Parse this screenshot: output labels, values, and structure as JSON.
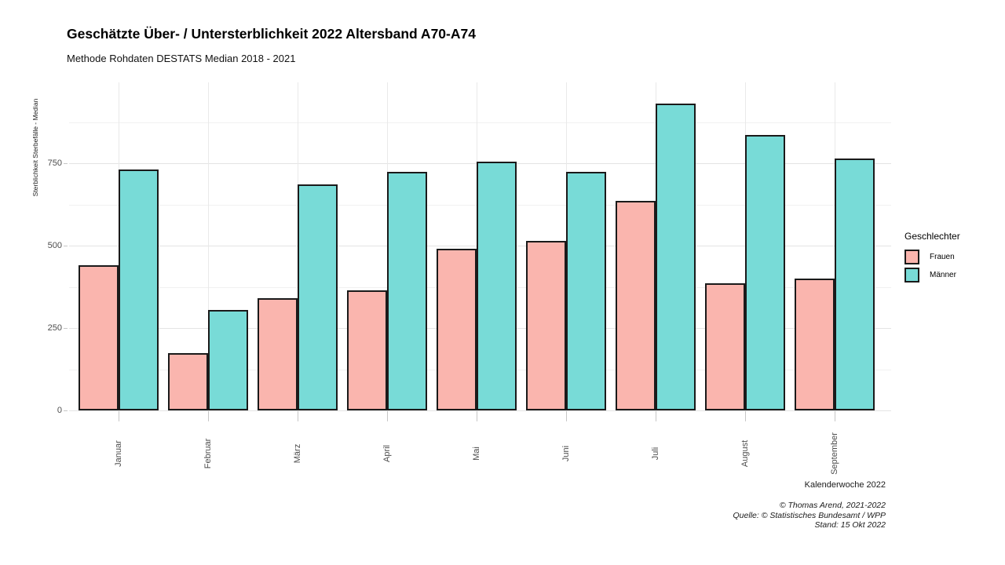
{
  "title": "Geschätzte Über- / Untersterblichkeit 2022 Altersband A70-A74",
  "subtitle": "Methode Rohdaten DESTATS Median 2018 - 2021",
  "chart_data": {
    "type": "bar",
    "title": "Geschätzte Über- / Untersterblichkeit 2022 Altersband A70-A74",
    "subtitle": "Methode Rohdaten DESTATS Median 2018 - 2021",
    "categories": [
      "Januar",
      "Februar",
      "März",
      "April",
      "Mai",
      "Juni",
      "Juli",
      "August",
      "September"
    ],
    "series": [
      {
        "name": "Frauen",
        "color": "#fab5ae",
        "values": [
          440,
          175,
          340,
          365,
          490,
          515,
          635,
          385,
          400
        ]
      },
      {
        "name": "Männer",
        "color": "#78dbd7",
        "values": [
          730,
          305,
          685,
          725,
          755,
          725,
          930,
          835,
          765
        ]
      }
    ],
    "xlabel": "Kalenderwoche 2022",
    "ylabel": "Sterblichkeit Sterbefälle - Median",
    "ylim": [
      0,
      975
    ],
    "yticks_major": [
      0,
      250,
      500,
      750
    ],
    "yticks_minor": [
      125,
      375,
      625,
      875
    ],
    "grid": "on",
    "legend_title": "Geschlechter",
    "legend_position": "right",
    "bar_outline_color": "#1a1a1a"
  },
  "caption": {
    "lines": [
      "© Thomas Arend, 2021-2022",
      "Quelle: © Statistisches Bundesamt / WPP",
      "Stand: 15 Okt 2022"
    ]
  }
}
